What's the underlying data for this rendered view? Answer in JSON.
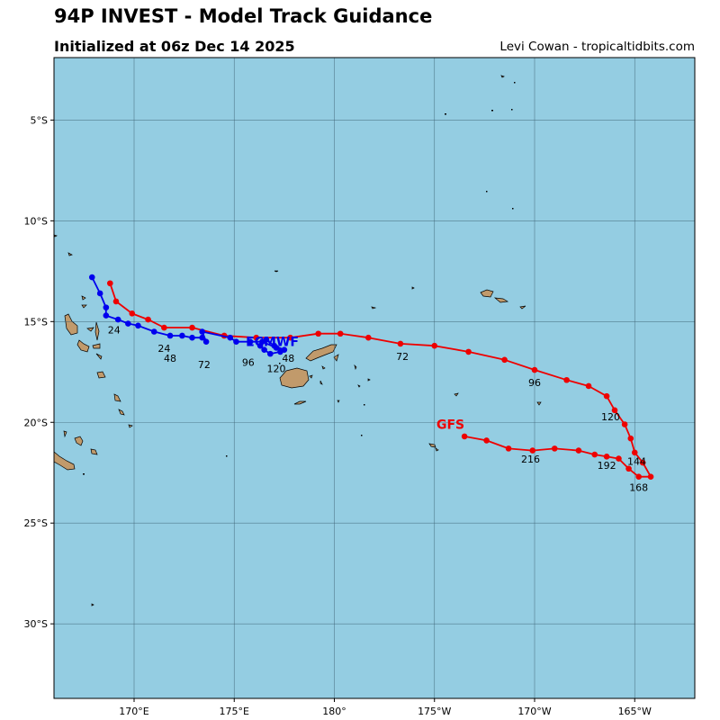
{
  "header": {
    "title": "94P INVEST - Model Track Guidance",
    "subtitle": "Initialized at 06z Dec 14 2025",
    "credit": "Levi Cowan - tropicaltidbits.com"
  },
  "colors": {
    "ocean": "#94cde2",
    "land": "#c19a6b",
    "gfs": "#ee0000",
    "ecmwf": "#0000ee",
    "grid": "#3b5f70"
  },
  "chart_data": {
    "type": "map",
    "extent": {
      "lon": [
        166,
        198
      ],
      "lat": [
        -33.7,
        -1.9
      ]
    },
    "lon_ticks": [
      {
        "lon": 170,
        "label": "170°E"
      },
      {
        "lon": 175,
        "label": "175°E"
      },
      {
        "lon": 180,
        "label": "180°"
      },
      {
        "lon": 185,
        "label": "175°W"
      },
      {
        "lon": 190,
        "label": "170°W"
      },
      {
        "lon": 195,
        "label": "165°W"
      }
    ],
    "lat_ticks": [
      {
        "lat": -5,
        "label": "5°S"
      },
      {
        "lat": -10,
        "label": "10°S"
      },
      {
        "lat": -15,
        "label": "15°S"
      },
      {
        "lat": -20,
        "label": "20°S"
      },
      {
        "lat": -25,
        "label": "25°S"
      },
      {
        "lat": -30,
        "label": "30°S"
      }
    ],
    "tracks": [
      {
        "name": "GFS",
        "color": "#ee0000",
        "label_at": [
          185.8,
          -20.1
        ],
        "points": [
          [
            168.8,
            -13.1
          ],
          [
            169.1,
            -14.0
          ],
          [
            169.9,
            -14.6
          ],
          [
            170.7,
            -14.9
          ],
          [
            171.5,
            -15.3
          ],
          [
            172.9,
            -15.3
          ],
          [
            174.5,
            -15.7
          ],
          [
            176.1,
            -15.8
          ],
          [
            177.8,
            -15.8
          ],
          [
            179.2,
            -15.6
          ],
          [
            180.3,
            -15.6
          ],
          [
            181.7,
            -15.8
          ],
          [
            183.3,
            -16.1
          ],
          [
            185.0,
            -16.2
          ],
          [
            186.7,
            -16.5
          ],
          [
            188.5,
            -16.9
          ],
          [
            190.0,
            -17.4
          ],
          [
            191.6,
            -17.9
          ],
          [
            192.7,
            -18.2
          ],
          [
            193.6,
            -18.7
          ],
          [
            194.0,
            -19.4
          ],
          [
            194.5,
            -20.1
          ],
          [
            194.8,
            -20.8
          ],
          [
            195.0,
            -21.5
          ],
          [
            195.4,
            -22.0
          ],
          [
            195.8,
            -22.7
          ],
          [
            195.2,
            -22.7
          ],
          [
            194.7,
            -22.3
          ],
          [
            194.2,
            -21.8
          ],
          [
            193.6,
            -21.7
          ],
          [
            193.0,
            -21.6
          ],
          [
            192.2,
            -21.4
          ],
          [
            191.0,
            -21.3
          ],
          [
            189.9,
            -21.4
          ],
          [
            188.7,
            -21.3
          ],
          [
            187.6,
            -20.9
          ],
          [
            186.5,
            -20.7
          ]
        ],
        "hour_labels": [
          {
            "text": "24",
            "lon": 169.0,
            "lat": -15.6
          },
          {
            "text": "72",
            "lon": 183.4,
            "lat": -16.9
          },
          {
            "text": "96",
            "lon": 190.0,
            "lat": -18.2
          },
          {
            "text": "120",
            "lon": 193.8,
            "lat": -19.9
          },
          {
            "text": "144",
            "lon": 195.1,
            "lat": -22.1
          },
          {
            "text": "168",
            "lon": 195.2,
            "lat": -23.4
          },
          {
            "text": "192",
            "lon": 193.6,
            "lat": -22.3
          },
          {
            "text": "216",
            "lon": 189.8,
            "lat": -22.0
          }
        ]
      },
      {
        "name": "ECMWF",
        "color": "#0000ee",
        "label_at": [
          176.9,
          -16.0
        ],
        "points": [
          [
            167.9,
            -12.8
          ],
          [
            168.3,
            -13.6
          ],
          [
            168.6,
            -14.3
          ],
          [
            168.6,
            -14.7
          ],
          [
            169.2,
            -14.9
          ],
          [
            169.7,
            -15.1
          ],
          [
            170.2,
            -15.2
          ],
          [
            171.0,
            -15.5
          ],
          [
            171.8,
            -15.7
          ],
          [
            172.4,
            -15.7
          ],
          [
            172.9,
            -15.8
          ],
          [
            173.4,
            -15.8
          ],
          [
            173.6,
            -16.0
          ],
          [
            173.4,
            -15.5
          ],
          [
            174.8,
            -15.8
          ],
          [
            175.1,
            -16.0
          ],
          [
            175.8,
            -16.0
          ],
          [
            176.4,
            -16.0
          ],
          [
            177.1,
            -16.3
          ],
          [
            177.5,
            -16.4
          ],
          [
            177.0,
            -16.2
          ],
          [
            176.6,
            -15.9
          ],
          [
            176.3,
            -16.2
          ],
          [
            176.5,
            -16.4
          ],
          [
            176.8,
            -16.6
          ],
          [
            177.3,
            -16.5
          ]
        ],
        "hour_labels": [
          {
            "text": "24",
            "lon": 171.5,
            "lat": -16.5
          },
          {
            "text": "48",
            "lon": 171.8,
            "lat": -17.0
          },
          {
            "text": "72",
            "lon": 173.5,
            "lat": -17.3
          },
          {
            "text": "96",
            "lon": 175.7,
            "lat": -17.2
          },
          {
            "text": "48",
            "lon": 177.7,
            "lat": -17.0
          },
          {
            "text": "120",
            "lon": 177.1,
            "lat": -17.5
          }
        ]
      }
    ]
  }
}
